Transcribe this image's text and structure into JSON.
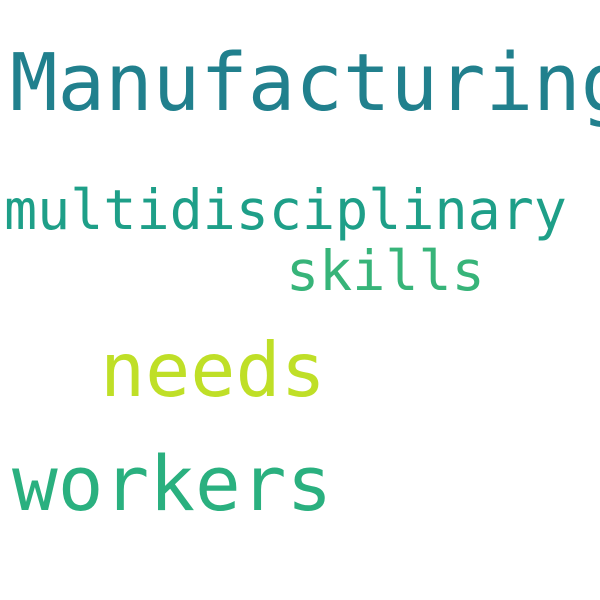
{
  "words": {
    "manufacturing": {
      "text": "Manufacturing",
      "color": "#21808d"
    },
    "multidisciplinary": {
      "text": "multidisciplinary",
      "color": "#1e9f88"
    },
    "skills": {
      "text": "skills",
      "color": "#37b479"
    },
    "needs": {
      "text": "needs",
      "color": "#bfdf27"
    },
    "workers": {
      "text": "workers",
      "color": "#2ab07f"
    }
  },
  "background_color": "#ffffff"
}
